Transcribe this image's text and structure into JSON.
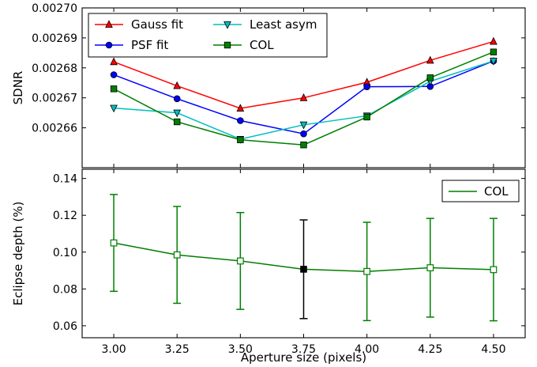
{
  "chart_data": [
    {
      "type": "line",
      "xlabel": "",
      "ylabel": "SDNR",
      "x": [
        3.0,
        3.25,
        3.5,
        3.75,
        4.0,
        4.25,
        4.5
      ],
      "xlim": [
        2.875,
        4.625
      ],
      "ylim": [
        0.0026467,
        0.0027
      ],
      "yticks": [
        "0.00266",
        "0.00267",
        "0.00268",
        "0.00269",
        "0.00270"
      ],
      "ytick_values": [
        0.00266,
        0.00267,
        0.00268,
        0.00269,
        0.0027
      ],
      "legend_position": "top-left",
      "series": [
        {
          "name": "Gauss fit",
          "color": "#ff0000",
          "marker": "triangle-up",
          "values": [
            0.002682,
            0.002674,
            0.0026665,
            0.00267,
            0.0026752,
            0.0026825,
            0.0026888
          ]
        },
        {
          "name": "PSF fit",
          "color": "#0000ff",
          "marker": "circle",
          "values": [
            0.0026777,
            0.0026697,
            0.0026624,
            0.002658,
            0.0026737,
            0.0026738,
            0.0026823
          ]
        },
        {
          "name": "Least asym",
          "color": "#00bfbf",
          "marker": "triangle-down",
          "values": [
            0.0026666,
            0.002665,
            0.0026562,
            0.002661,
            0.002664,
            0.0026755,
            0.0026823
          ]
        },
        {
          "name": "COL",
          "color": "#007f00",
          "marker": "square",
          "values": [
            0.002673,
            0.002662,
            0.002656,
            0.0026543,
            0.0026636,
            0.0026767,
            0.0026853
          ]
        }
      ]
    },
    {
      "type": "line",
      "xlabel": "Aperture size (pixels)",
      "ylabel": "Eclipse depth (%)",
      "x": [
        3.0,
        3.25,
        3.5,
        3.75,
        4.0,
        4.25,
        4.5
      ],
      "xticks": [
        "3.00",
        "3.25",
        "3.50",
        "3.75",
        "4.00",
        "4.25",
        "4.50"
      ],
      "xlim": [
        2.875,
        4.625
      ],
      "ylim": [
        0.0535,
        0.145
      ],
      "yticks": [
        "0.06",
        "0.08",
        "0.10",
        "0.12",
        "0.14"
      ],
      "ytick_values": [
        0.06,
        0.08,
        0.1,
        0.12,
        0.14
      ],
      "legend_position": "top-right",
      "series": [
        {
          "name": "COL",
          "color": "#007f00",
          "marker": "open-square",
          "values": [
            0.105,
            0.0985,
            0.0952,
            0.0907,
            0.0895,
            0.0915,
            0.0905
          ],
          "errors": [
            0.0263,
            0.0263,
            0.0263,
            0.0268,
            0.0267,
            0.0268,
            0.0278
          ],
          "highlight_index": 3,
          "highlight_color": "#000000"
        }
      ]
    }
  ]
}
